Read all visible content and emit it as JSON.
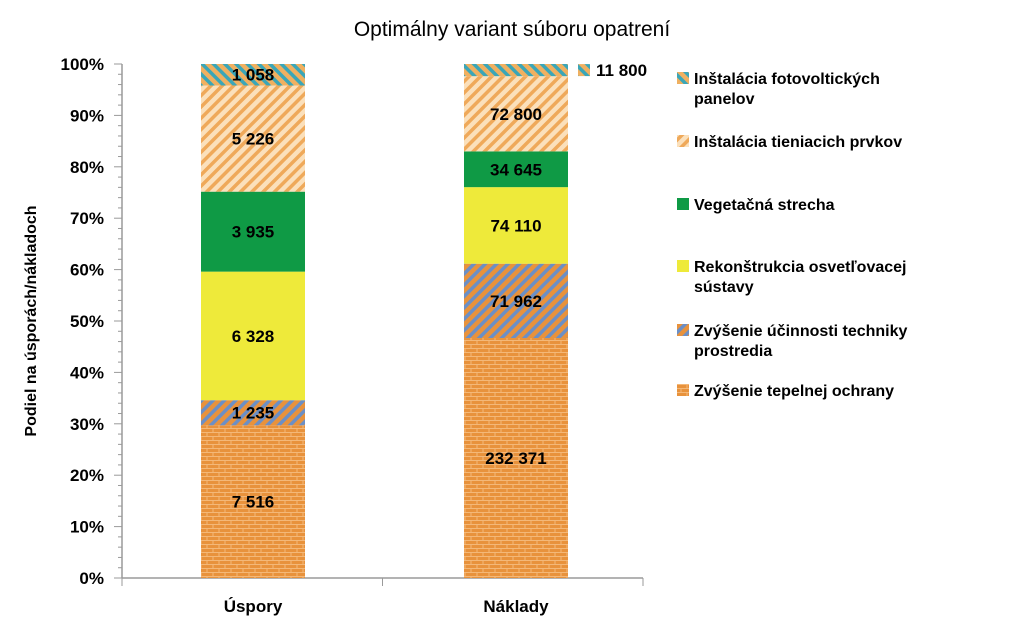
{
  "chart_data": {
    "type": "bar",
    "stacked": true,
    "normalized": true,
    "title": "Optimálny variant súboru opatrení",
    "ylabel": "Podiel na úsporách/nákladoch",
    "xlabel": "",
    "ylim": [
      0,
      100
    ],
    "y_ticks": [
      "0%",
      "10%",
      "20%",
      "30%",
      "40%",
      "50%",
      "60%",
      "70%",
      "80%",
      "90%",
      "100%"
    ],
    "categories": [
      "Úspory",
      "Náklady"
    ],
    "legend_position": "right",
    "series": [
      {
        "name": "Zvýšenie tepelnej ochrany",
        "values": [
          7516,
          232371
        ],
        "labels": [
          "7 516",
          "232 371"
        ],
        "color": "#e8923c",
        "pattern": "brick"
      },
      {
        "name": "Zvýšenie účinnosti techniky prostredia",
        "values": [
          1235,
          71962
        ],
        "labels": [
          "1 235",
          "71 962"
        ],
        "color": "#e8923c",
        "pattern": "diag-blue"
      },
      {
        "name": "Rekonštrukcia osvetľovacej sústavy",
        "values": [
          6328,
          74110
        ],
        "labels": [
          "6 328",
          "74 110"
        ],
        "color": "#eeea3a",
        "pattern": "solid"
      },
      {
        "name": "Vegetačná strecha",
        "values": [
          3935,
          34645
        ],
        "labels": [
          "3 935",
          "34 645"
        ],
        "color": "#0f9a45",
        "pattern": "solid"
      },
      {
        "name": "Inštalácia tieniacich prvkov",
        "values": [
          5226,
          72800
        ],
        "labels": [
          "5 226",
          "72 800"
        ],
        "color": "#f7c990",
        "pattern": "diag-light"
      },
      {
        "name": "Inštalácia fotovoltických panelov",
        "values": [
          1058,
          11800
        ],
        "labels": [
          "1 058",
          "11 800"
        ],
        "color": "#f0b060",
        "pattern": "diag-teal"
      }
    ]
  }
}
